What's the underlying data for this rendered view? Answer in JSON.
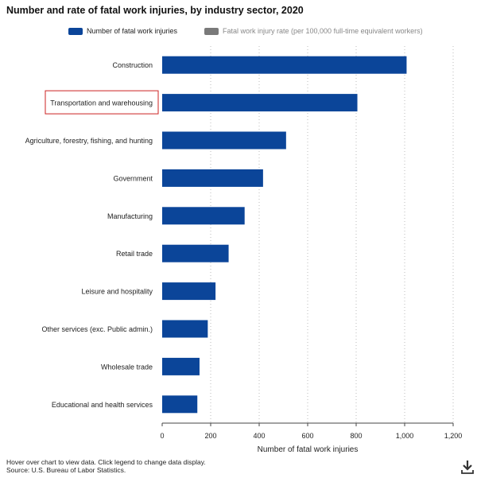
{
  "title": "Number and rate of fatal work injuries, by industry sector, 2020",
  "legend": [
    {
      "label": "Number of fatal work injuries",
      "color": "#0b4599",
      "active": true
    },
    {
      "label": "Fatal work injury rate (per 100,000 full-time equivalent workers)",
      "color": "#7a7a7a",
      "active": false
    }
  ],
  "highlighted_category": "Transportation and warehousing",
  "footer": {
    "note": "Hover over chart to view data. Click legend to change data display.",
    "source": "Source: U.S. Bureau of Labor Statistics."
  },
  "icons": {
    "download": "download-icon"
  },
  "chart_data": {
    "type": "bar",
    "orientation": "horizontal",
    "categories": [
      "Construction",
      "Transportation and warehousing",
      "Agriculture, forestry, fishing, and hunting",
      "Government",
      "Manufacturing",
      "Retail trade",
      "Leisure and hospitality",
      "Other services (exc. Public admin.)",
      "Wholesale trade",
      "Educational and health services"
    ],
    "values": [
      1008,
      805,
      511,
      416,
      340,
      274,
      220,
      188,
      154,
      145
    ],
    "xlabel": "Number of fatal work injuries",
    "xlim": [
      0,
      1200
    ],
    "xticks": [
      0,
      200,
      400,
      600,
      800,
      1000,
      1200
    ],
    "xtick_labels": [
      "0",
      "200",
      "400",
      "600",
      "800",
      "1,000",
      "1,200"
    ],
    "grid": "vertical dotted",
    "bar_color": "#0b4599"
  }
}
